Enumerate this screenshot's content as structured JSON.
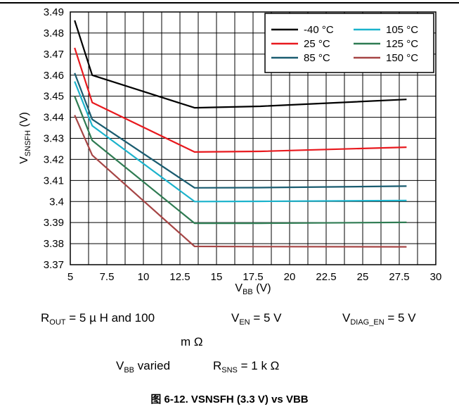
{
  "chart_data": {
    "type": "line",
    "xlabel": {
      "main": "V",
      "sub": "BB",
      "unit": " (V)"
    },
    "ylabel": {
      "main": "V",
      "sub": "SNSFH",
      "unit": " (V)"
    },
    "xlim": [
      5,
      30
    ],
    "ylim": [
      3.37,
      3.49
    ],
    "x_ticks": [
      5,
      7.5,
      10,
      12.5,
      15,
      17.5,
      20,
      22.5,
      25,
      27.5,
      30
    ],
    "x_tick_labels": [
      "5",
      "7.5",
      "10",
      "12.5",
      "15",
      "17.5",
      "20",
      "22.5",
      "25",
      "27.5",
      "30"
    ],
    "x_minor_step": 1.25,
    "y_ticks": [
      3.37,
      3.38,
      3.39,
      3.4,
      3.41,
      3.42,
      3.43,
      3.44,
      3.45,
      3.46,
      3.47,
      3.48,
      3.49
    ],
    "y_tick_labels": [
      "3.37",
      "3.38",
      "3.39",
      "3.4",
      "3.41",
      "3.42",
      "3.43",
      "3.44",
      "3.45",
      "3.46",
      "3.47",
      "3.48",
      "3.49"
    ],
    "grid": true,
    "legend_position": "top-right",
    "series": [
      {
        "name": "-40 °C",
        "color": "#000000",
        "x": [
          5.3,
          6.5,
          13.5,
          18,
          28
        ],
        "y": [
          3.486,
          3.46,
          3.4445,
          3.4452,
          3.4485
        ]
      },
      {
        "name": "25 °C",
        "color": "#e8191e",
        "x": [
          5.3,
          6.5,
          13.5,
          18,
          28
        ],
        "y": [
          3.473,
          3.447,
          3.4235,
          3.4238,
          3.4258
        ]
      },
      {
        "name": "85 °C",
        "color": "#1a5c70",
        "x": [
          5.3,
          6.5,
          13.5,
          18,
          28
        ],
        "y": [
          3.461,
          3.439,
          3.4065,
          3.4066,
          3.4073
        ]
      },
      {
        "name": "105 °C",
        "color": "#1bb3cc",
        "x": [
          5.3,
          6.5,
          13.5,
          18,
          28
        ],
        "y": [
          3.457,
          3.436,
          3.4,
          3.4001,
          3.4005
        ]
      },
      {
        "name": "125 °C",
        "color": "#2e7b52",
        "x": [
          5.3,
          6.5,
          13.5,
          18,
          28
        ],
        "y": [
          3.45,
          3.429,
          3.3897,
          3.3897,
          3.3901
        ]
      },
      {
        "name": "150 °C",
        "color": "#a64545",
        "x": [
          5.3,
          6.5,
          13.5,
          18,
          28
        ],
        "y": [
          3.441,
          3.422,
          3.3787,
          3.3786,
          3.3785
        ]
      }
    ]
  },
  "conditions": {
    "rout_main": "R",
    "rout_sub": "OUT",
    "rout_value": " = 5 µ H and 100",
    "rout_value_line2": "m Ω",
    "ven_main": "V",
    "ven_sub": "EN",
    "ven_value": " = 5 V",
    "vdiag_main": "V",
    "vdiag_sub": "DIAG_EN",
    "vdiag_value": " = 5 V",
    "vbb_main": "V",
    "vbb_sub": "BB",
    "vbb_value": " varied",
    "rsns_main": "R",
    "rsns_sub": "SNS",
    "rsns_value": " = 1 k Ω"
  },
  "caption": "图 6-12. VSNSFH (3.3 V) vs VBB"
}
